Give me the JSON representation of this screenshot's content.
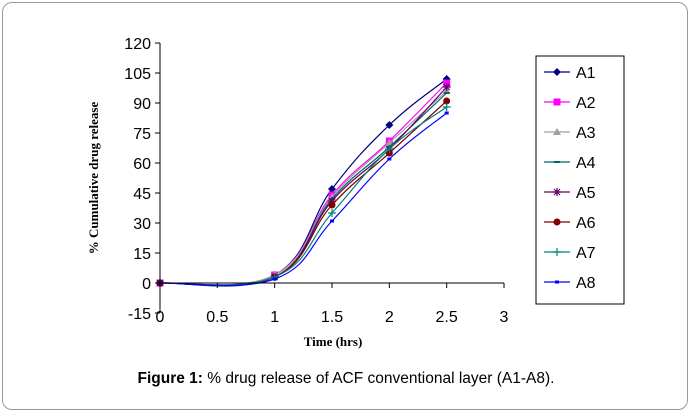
{
  "chart_data": {
    "type": "line",
    "title": "",
    "xlabel": "Time (hrs)",
    "ylabel": "% Cumulative drug release",
    "xlim": [
      0,
      3
    ],
    "ylim": [
      -15,
      120
    ],
    "xticks": [
      0,
      0.5,
      1,
      1.5,
      2,
      2.5,
      3
    ],
    "xtick_labels": [
      "0",
      "0.5",
      "1",
      "1.5",
      "2",
      "2.5",
      "3"
    ],
    "yticks": [
      -15,
      0,
      15,
      30,
      45,
      60,
      75,
      90,
      105,
      120
    ],
    "ytick_labels": [
      "-15",
      "0",
      "15",
      "30",
      "45",
      "60",
      "75",
      "90",
      "105",
      "120"
    ],
    "x": [
      0,
      1,
      1.5,
      2,
      2.5
    ],
    "legend_position": "right",
    "series": [
      {
        "name": "A1",
        "values": [
          0,
          4,
          47,
          79,
          102
        ],
        "color": "#000080",
        "marker": "diamond"
      },
      {
        "name": "A2",
        "values": [
          0,
          4,
          44,
          71,
          100
        ],
        "color": "#ff00ff",
        "marker": "square"
      },
      {
        "name": "A3",
        "values": [
          0,
          4,
          43,
          70,
          96
        ],
        "color": "#a0a0a0",
        "marker": "triangle"
      },
      {
        "name": "A4",
        "values": [
          0,
          3,
          42,
          68,
          95
        ],
        "color": "#006666",
        "marker": "dash"
      },
      {
        "name": "A5",
        "values": [
          0,
          3,
          41,
          67,
          98
        ],
        "color": "#660066",
        "marker": "star"
      },
      {
        "name": "A6",
        "values": [
          0,
          3,
          39,
          65,
          91
        ],
        "color": "#800000",
        "marker": "circle"
      },
      {
        "name": "A7",
        "values": [
          0,
          3,
          35,
          67,
          88
        ],
        "color": "#008080",
        "marker": "plus"
      },
      {
        "name": "A8",
        "values": [
          0,
          2,
          31,
          62,
          85
        ],
        "color": "#0000ff",
        "marker": "square-small"
      }
    ]
  },
  "caption": {
    "label": "Figure 1:",
    "text": " % drug release of ACF conventional layer (A1-A8)."
  }
}
